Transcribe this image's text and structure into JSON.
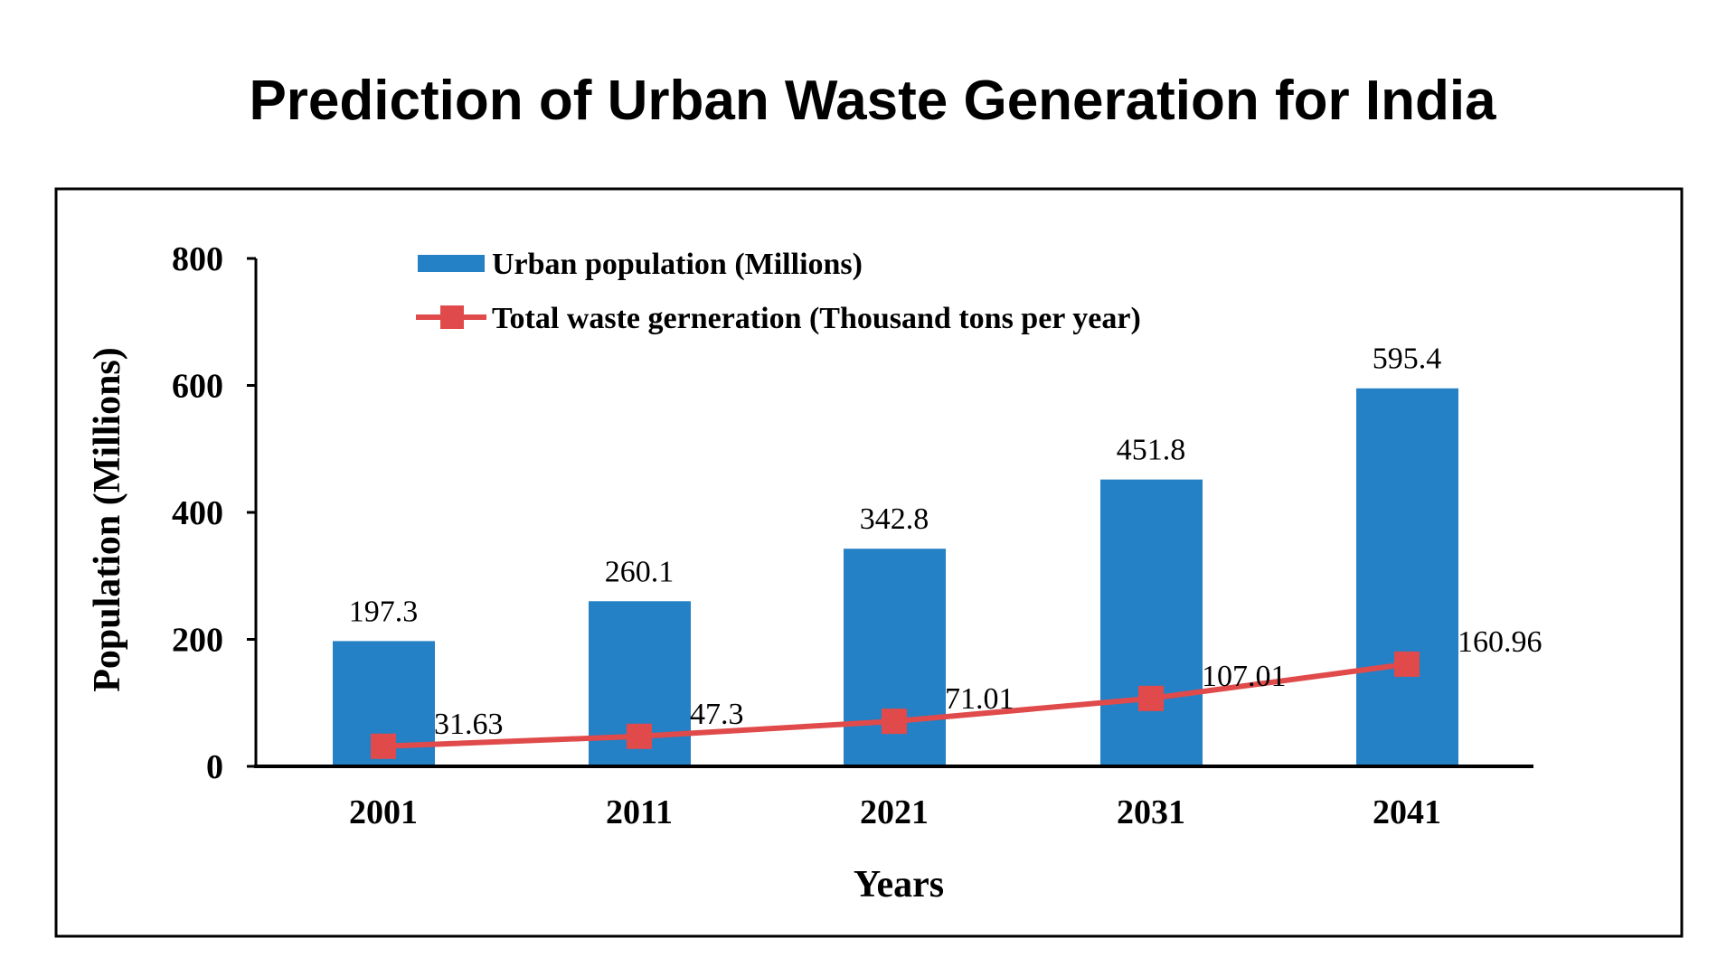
{
  "chart_data": {
    "type": "bar+line",
    "title": "Prediction of Urban Waste Generation for India",
    "xlabel": "Years",
    "ylabel": "Population (Millions)",
    "ylim": [
      0,
      800
    ],
    "yticks": [
      0,
      200,
      400,
      600,
      800
    ],
    "categories": [
      "2001",
      "2011",
      "2021",
      "2031",
      "2041"
    ],
    "series": [
      {
        "name": "Urban population (Millions)",
        "type": "bar",
        "color": "#2481c6",
        "values": [
          197.3,
          260.1,
          342.8,
          451.8,
          595.4
        ],
        "labels": [
          "197.3",
          "260.1",
          "342.8",
          "451.8",
          "595.4"
        ]
      },
      {
        "name": "Total waste gerneration (Thousand tons per year)",
        "type": "line",
        "marker": "square",
        "color": "#e04a4a",
        "values": [
          31.63,
          47.3,
          71.01,
          107.01,
          160.96
        ],
        "labels": [
          "31.63",
          "47.3",
          "71.01",
          "107.01",
          "160.96"
        ]
      }
    ],
    "grid": false,
    "legend": "top-left"
  }
}
